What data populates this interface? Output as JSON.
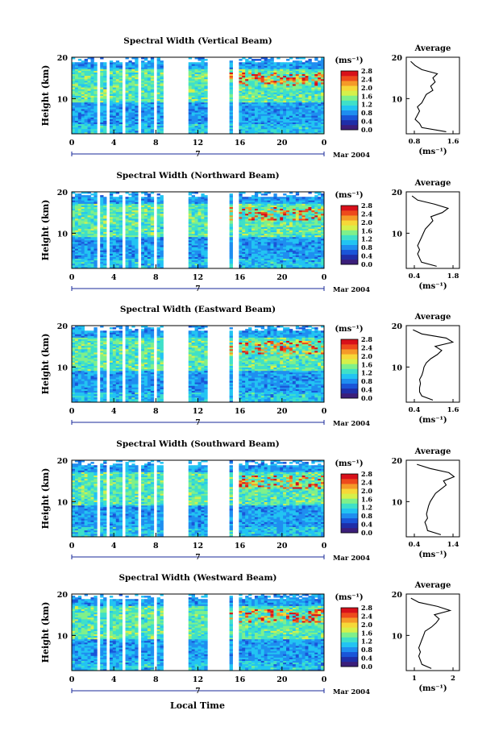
{
  "figure": {
    "xlabel": "Local Time",
    "date_label": "Mar 2004",
    "day_label": "7",
    "avg_title": "Average",
    "colorbar_unit": "(ms⁻¹)",
    "avg_xunit": "(ms⁻¹)"
  },
  "colors": {
    "background": "#ffffff",
    "scale": [
      "#3b1e7a",
      "#1f2ea8",
      "#1a55d8",
      "#1f8ef0",
      "#22c4f2",
      "#3fe0c8",
      "#7ff08a",
      "#d6f04a",
      "#f6d838",
      "#f59a28",
      "#ee4a1c",
      "#d8101a"
    ]
  },
  "chart_data": [
    {
      "type": "heatmap",
      "title": "Spectral Width (Vertical Beam)",
      "ylabel": "Height (km)",
      "xlim": [
        0,
        24
      ],
      "ylim": [
        1.5,
        20
      ],
      "xticks": [
        "0",
        "4",
        "8",
        "12",
        "16",
        "20",
        "0"
      ],
      "yticks": [
        "10",
        "20"
      ],
      "colorbar": {
        "label": "(ms⁻¹)",
        "range": [
          0,
          2.8
        ],
        "ticks": [
          "0.0",
          "0.4",
          "0.8",
          "1.2",
          "1.6",
          "2.0",
          "2.4",
          "2.8"
        ]
      },
      "data_gaps_hours": [
        [
          2.3,
          2.8
        ],
        [
          3.2,
          3.5
        ],
        [
          4.8,
          5.2
        ],
        [
          6.3,
          6.7
        ],
        [
          7.7,
          8.1
        ],
        [
          8.8,
          11.2
        ],
        [
          13.0,
          15.1
        ],
        [
          15.4,
          15.9
        ]
      ],
      "average_profile": {
        "title": "Average",
        "xlim": [
          0.6,
          1.8
        ],
        "xticks": [
          "0.8",
          "1.6"
        ],
        "yticks": [
          "10",
          "20"
        ],
        "height": [
          2,
          3,
          4,
          5,
          6,
          7,
          8,
          9,
          10,
          11,
          12,
          13,
          14,
          15,
          16,
          17,
          18,
          19
        ],
        "value": [
          1.5,
          0.95,
          0.9,
          0.8,
          0.85,
          0.9,
          0.85,
          0.95,
          1.0,
          1.05,
          1.2,
          1.15,
          1.25,
          1.2,
          1.3,
          0.95,
          0.8,
          0.7
        ]
      }
    },
    {
      "type": "heatmap",
      "title": "Spectral Width (Northward Beam)",
      "ylabel": "Height (km)",
      "xlim": [
        0,
        24
      ],
      "ylim": [
        1.5,
        20
      ],
      "xticks": [
        "0",
        "4",
        "8",
        "12",
        "16",
        "20",
        "0"
      ],
      "yticks": [
        "10",
        "20"
      ],
      "colorbar": {
        "label": "(ms⁻¹)",
        "range": [
          0,
          2.8
        ],
        "ticks": [
          "0.0",
          "0.4",
          "0.8",
          "1.2",
          "1.6",
          "2.0",
          "2.4",
          "2.8"
        ]
      },
      "data_gaps_hours": [
        [
          2.3,
          2.8
        ],
        [
          3.2,
          3.5
        ],
        [
          4.8,
          5.2
        ],
        [
          6.3,
          6.7
        ],
        [
          7.7,
          8.1
        ],
        [
          8.8,
          11.2
        ],
        [
          13.0,
          15.1
        ],
        [
          15.4,
          15.9
        ]
      ],
      "average_profile": {
        "title": "Average",
        "xlim": [
          0.4,
          1.8
        ],
        "xticks": [
          "0.4",
          "1.8"
        ],
        "yticks": [
          "10",
          "20"
        ],
        "height": [
          2,
          3,
          4,
          5,
          6,
          7,
          8,
          9,
          10,
          11,
          12,
          13,
          14,
          15,
          16,
          17,
          18,
          19
        ],
        "value": [
          1.2,
          0.8,
          0.75,
          0.7,
          0.75,
          0.7,
          0.75,
          0.8,
          0.85,
          0.9,
          1.0,
          1.1,
          1.05,
          1.35,
          1.5,
          1.15,
          0.7,
          0.55
        ]
      }
    },
    {
      "type": "heatmap",
      "title": "Spectral Width (Eastward Beam)",
      "ylabel": "Height (km)",
      "xlim": [
        0,
        24
      ],
      "ylim": [
        1.5,
        20
      ],
      "xticks": [
        "0",
        "4",
        "8",
        "12",
        "16",
        "20",
        "0"
      ],
      "yticks": [
        "10",
        "20"
      ],
      "colorbar": {
        "label": "(ms⁻¹)",
        "range": [
          0,
          2.8
        ],
        "ticks": [
          "0.0",
          "0.4",
          "0.8",
          "1.2",
          "1.6",
          "2.0",
          "2.4",
          "2.8"
        ]
      },
      "data_gaps_hours": [
        [
          2.3,
          2.8
        ],
        [
          3.2,
          3.5
        ],
        [
          4.8,
          5.2
        ],
        [
          6.3,
          6.7
        ],
        [
          7.7,
          8.1
        ],
        [
          8.8,
          11.2
        ],
        [
          13.0,
          15.1
        ],
        [
          15.4,
          15.9
        ]
      ],
      "average_profile": {
        "title": "Average",
        "xlim": [
          0.4,
          1.6
        ],
        "xticks": [
          "0.4",
          "1.6"
        ],
        "yticks": [
          "10",
          "20"
        ],
        "height": [
          2,
          3,
          4,
          5,
          6,
          7,
          8,
          9,
          10,
          11,
          12,
          13,
          14,
          15,
          16,
          17,
          18,
          19
        ],
        "value": [
          1.0,
          0.75,
          0.7,
          0.7,
          0.72,
          0.7,
          0.75,
          0.78,
          0.8,
          0.85,
          0.95,
          1.1,
          1.2,
          1.05,
          1.45,
          1.3,
          0.75,
          0.55
        ]
      }
    },
    {
      "type": "heatmap",
      "title": "Spectral Width (Southward Beam)",
      "ylabel": "Height (km)",
      "xlim": [
        0,
        24
      ],
      "ylim": [
        1.5,
        20
      ],
      "xticks": [
        "0",
        "4",
        "8",
        "12",
        "16",
        "20",
        "0"
      ],
      "yticks": [
        "10",
        "20"
      ],
      "colorbar": {
        "label": "(ms⁻¹)",
        "range": [
          0,
          2.8
        ],
        "ticks": [
          "0.0",
          "0.4",
          "0.8",
          "1.2",
          "1.6",
          "2.0",
          "2.4",
          "2.8"
        ]
      },
      "data_gaps_hours": [
        [
          2.3,
          2.8
        ],
        [
          3.2,
          3.5
        ],
        [
          4.8,
          5.2
        ],
        [
          6.3,
          6.7
        ],
        [
          7.7,
          8.1
        ],
        [
          8.8,
          11.2
        ],
        [
          13.0,
          15.1
        ],
        [
          15.4,
          15.9
        ]
      ],
      "average_profile": {
        "title": "Average",
        "xlim": [
          0.4,
          1.4
        ],
        "xticks": [
          "0.4",
          "1.4"
        ],
        "yticks": [
          "10",
          "20"
        ],
        "height": [
          2,
          3,
          4,
          5,
          6,
          7,
          8,
          9,
          10,
          11,
          12,
          13,
          14,
          15,
          16,
          17,
          18,
          19
        ],
        "value": [
          1.05,
          0.8,
          0.78,
          0.75,
          0.8,
          0.78,
          0.8,
          0.82,
          0.85,
          0.9,
          0.95,
          1.05,
          1.15,
          1.1,
          1.3,
          1.2,
          0.85,
          0.6
        ]
      }
    },
    {
      "type": "heatmap",
      "title": "Spectral Width (Westward Beam)",
      "ylabel": "Height (km)",
      "xlim": [
        0,
        24
      ],
      "ylim": [
        1.5,
        20
      ],
      "xticks": [
        "0",
        "4",
        "8",
        "12",
        "16",
        "20",
        "0"
      ],
      "yticks": [
        "10",
        "20"
      ],
      "colorbar": {
        "label": "(ms⁻¹)",
        "range": [
          0,
          2.8
        ],
        "ticks": [
          "0.0",
          "0.4",
          "0.8",
          "1.2",
          "1.6",
          "2.0",
          "2.4",
          "2.8"
        ]
      },
      "data_gaps_hours": [
        [
          2.3,
          2.8
        ],
        [
          3.2,
          3.5
        ],
        [
          4.8,
          5.2
        ],
        [
          6.3,
          6.7
        ],
        [
          7.7,
          8.1
        ],
        [
          8.8,
          11.2
        ],
        [
          13.0,
          15.1
        ],
        [
          15.4,
          15.9
        ]
      ],
      "average_profile": {
        "title": "Average",
        "xlim": [
          0.5,
          2.2
        ],
        "xticks": [
          "1",
          "2"
        ],
        "yticks": [
          "10",
          "20"
        ],
        "height": [
          2,
          3,
          4,
          5,
          6,
          7,
          8,
          9,
          10,
          11,
          12,
          13,
          14,
          15,
          16,
          17,
          18,
          19
        ],
        "value": [
          1.3,
          1.0,
          0.95,
          0.9,
          0.95,
          0.9,
          0.95,
          1.0,
          1.05,
          1.1,
          1.3,
          1.45,
          1.55,
          1.4,
          1.9,
          1.5,
          0.9,
          0.65
        ]
      }
    }
  ]
}
